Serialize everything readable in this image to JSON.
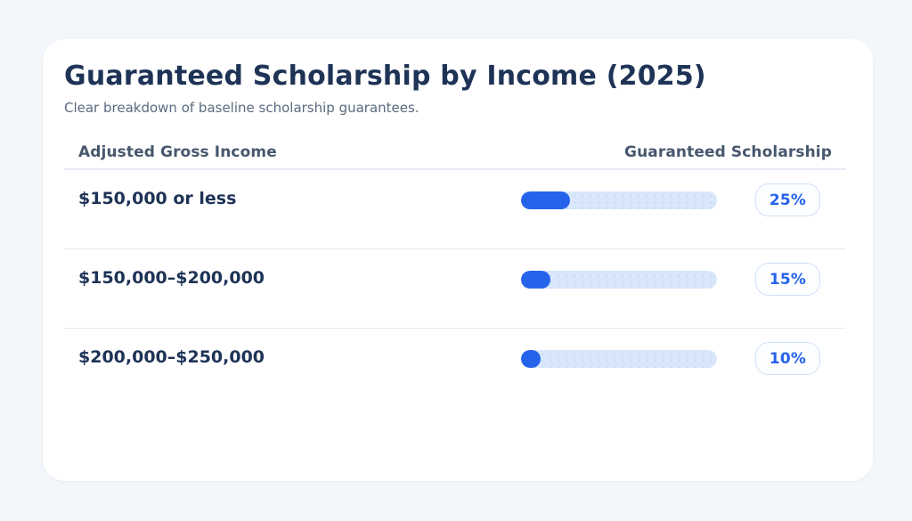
{
  "theme": {
    "page-bg": "#f3f6fa",
    "card-bg": "#ffffff",
    "navy": "#1e3356",
    "muted": "#5a6a80",
    "header-col": "#47586e",
    "divider": "#e4eaf2",
    "accent": "#2563eb",
    "track": "#d9e7fb",
    "badge-border": "#cfe0f8",
    "badge-bg": "#fdfeff"
  },
  "header": {
    "title": "Guaranteed Scholarship by Income (2025)",
    "subtitle": "Clear breakdown of baseline scholarship guarantees."
  },
  "table": {
    "columns": [
      "Adjusted Gross Income",
      "Guaranteed Scholarship"
    ],
    "rows": [
      {
        "income": "$150,000 or less",
        "scholarship_pct": 25,
        "badge": "25%"
      },
      {
        "income": "$150,000–$200,000",
        "scholarship_pct": 15,
        "badge": "15%"
      },
      {
        "income": "$200,000–$250,000",
        "scholarship_pct": 10,
        "badge": "10%"
      }
    ]
  },
  "chart_data": {
    "type": "bar",
    "orientation": "horizontal",
    "title": "Guaranteed Scholarship by Income (2025)",
    "subtitle": "Clear breakdown of baseline scholarship guarantees.",
    "categories": [
      "$150,000 or less",
      "$150,000–$200,000",
      "$200,000–$250,000"
    ],
    "values": [
      25,
      15,
      10
    ],
    "value_labels": [
      "25%",
      "15%",
      "10%"
    ],
    "xlabel": "Adjusted Gross Income",
    "ylabel": "Guaranteed Scholarship",
    "xlim": [
      0,
      100
    ],
    "grid": false,
    "legend": false
  }
}
